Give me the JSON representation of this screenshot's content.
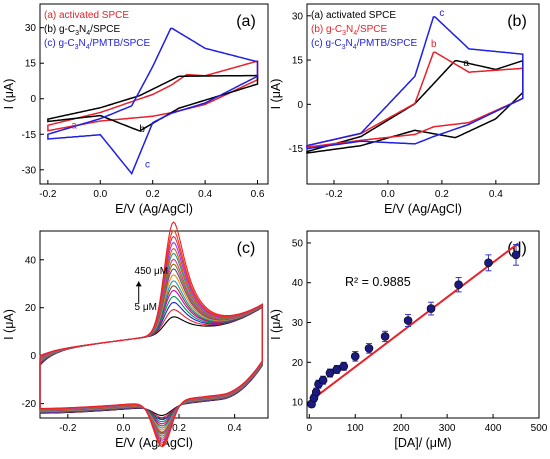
{
  "chart_data": [
    {
      "panel": "(a)",
      "type": "line",
      "xlabel": "E/V (Ag/AgCl)",
      "ylabel": "I (μA)",
      "xlim": [
        -0.23,
        0.64
      ],
      "ylim": [
        -36,
        40
      ],
      "xticks": [
        "-0.2",
        "0.0",
        "0.2",
        "0.4",
        "0.6"
      ],
      "yticks": [
        "-30",
        "-15",
        "0",
        "15",
        "30"
      ],
      "legend_position": "top-left",
      "series": [
        {
          "name": "(a) activated SPCE",
          "legend_html": "(a) activated SPCE",
          "color": "#e8212b",
          "curve_label": "a",
          "x_start": -0.2,
          "x_end": 0.6,
          "base_upper": 1.5,
          "base_lower": -9,
          "peaks": [
            {
              "branch": "upper",
              "E": 0.33,
              "height": 13.5,
              "width": 0.07
            },
            {
              "branch": "lower",
              "E": 0.15,
              "height": -9,
              "width": 0.07
            }
          ],
          "scan_x": [
            -0.2,
            0.0,
            0.2,
            0.27,
            0.33,
            0.4,
            0.6
          ],
          "fwd_y": [
            -11.2,
            -5.8,
            1.8,
            5.7,
            10.2,
            9.7,
            15.9
          ],
          "rev_y": [
            -13.5,
            -9.4,
            -7.4,
            -5.9,
            -4.3,
            -2.4,
            8.0
          ]
        },
        {
          "name": "(b) g-C3N4/SPCE",
          "legend_html": "(b) g-C<tspan font-size='7' dy='3'>3</tspan><tspan dy='-3'>N</tspan><tspan font-size='7' dy='3'>4</tspan><tspan dy='-3'>/SPCE</tspan>",
          "color": "#000000",
          "curve_label": "b",
          "x_start": -0.2,
          "x_end": 0.6,
          "base_upper": 1.2,
          "base_lower": -9.5,
          "peaks": [
            {
              "branch": "upper",
              "E": 0.3,
              "height": 9,
              "width": 0.09
            },
            {
              "branch": "lower",
              "E": 0.13,
              "height": -8,
              "width": 0.08
            }
          ],
          "scan_x": [
            -0.2,
            0.0,
            0.15,
            0.3,
            0.6
          ],
          "fwd_y": [
            -8.6,
            -3.8,
            1.3,
            9.5,
            9.8
          ],
          "rev_y": [
            -9.6,
            -7.1,
            -13.6,
            -4.0,
            6.2
          ]
        },
        {
          "name": "(c) g-C3N4/PMTB/SPCE",
          "legend_html": "(c) g-C<tspan font-size='7' dy='3'>3</tspan><tspan dy='-3'>N</tspan><tspan font-size='7' dy='3'>4</tspan><tspan dy='-3'>/PMTB/SPCE</tspan>",
          "color": "#1f1fe6",
          "curve_label": "c",
          "x_start": -0.2,
          "x_end": 0.6,
          "base_upper": 1.0,
          "base_lower": -7,
          "peaks": [
            {
              "branch": "upper",
              "E": 0.27,
              "height": 24,
              "width": 0.07
            },
            {
              "branch": "lower",
              "E": 0.12,
              "height": -26,
              "width": 0.065
            }
          ],
          "scan_x": [
            -0.2,
            0.0,
            0.12,
            0.2,
            0.27,
            0.4,
            0.6
          ],
          "fwd_y": [
            -15.0,
            -8.4,
            -3.0,
            13.6,
            30.0,
            21.3,
            15.6
          ],
          "rev_y": [
            -17.0,
            -15.2,
            -31.6,
            -10.1,
            -6.2,
            -1.8,
            9.5
          ]
        }
      ],
      "curve_label_positions": [
        {
          "label": "a",
          "x": -0.1,
          "y": -12.5
        },
        {
          "label": "b",
          "x": 0.16,
          "y": -14
        },
        {
          "label": "c",
          "x": 0.18,
          "y": -29
        }
      ],
      "annotations": []
    },
    {
      "panel": "(b)",
      "type": "line",
      "xlabel": "E/V (Ag/AgCl)",
      "ylabel": "I (μA)",
      "xlim": [
        -0.3,
        0.56
      ],
      "ylim": [
        -27,
        34
      ],
      "xticks": [
        "-0.2",
        "0.0",
        "0.2",
        "0.4"
      ],
      "yticks": [
        "-15",
        "0",
        "15",
        "30"
      ],
      "legend_position": "top-left",
      "series": [
        {
          "name": "(a) activated SPCE",
          "legend_html": "(a) activated SPCE",
          "color": "#000000",
          "curve_label": "a",
          "x_start": -0.3,
          "x_end": 0.5,
          "base_upper": 1.0,
          "base_lower": -6,
          "peaks": [
            {
              "branch": "upper",
              "E": 0.25,
              "height": 5,
              "width": 0.06
            },
            {
              "branch": "lower",
              "E": 0.17,
              "height": -3,
              "width": 0.07
            }
          ],
          "scan_x": [
            -0.3,
            -0.1,
            0.1,
            0.25,
            0.4,
            0.5
          ],
          "fwd_y": [
            -16.0,
            -10.9,
            0.2,
            14.9,
            11.8,
            14.8
          ],
          "rev_y": [
            -16.5,
            -14.0,
            -8.8,
            -11.3,
            -4.9,
            4.0
          ]
        },
        {
          "name": "(b) g-C3N4/SPCE",
          "legend_html": "(b) g-C<tspan font-size='7' dy='3'>3</tspan><tspan dy='-3'>N</tspan><tspan font-size='7' dy='3'>4</tspan><tspan dy='-3'>/SPCE</tspan>",
          "color": "#e8212b",
          "curve_label": "b",
          "x_start": -0.3,
          "x_end": 0.5,
          "base_upper": 0.0,
          "base_lower": -6,
          "peaks": [
            {
              "branch": "upper",
              "E": 0.17,
              "height": 9,
              "width": 0.05
            },
            {
              "branch": "lower",
              "E": 0.1,
              "height": -2,
              "width": 0.05
            }
          ],
          "scan_x": [
            -0.3,
            -0.1,
            0.1,
            0.17,
            0.3,
            0.5
          ],
          "fwd_y": [
            -14.0,
            -9.9,
            0.3,
            17.9,
            10.9,
            12.2
          ],
          "rev_y": [
            -14.5,
            -12.2,
            -10.2,
            -7.6,
            -6.2,
            2.0
          ]
        },
        {
          "name": "(c) g-C3N4/PMTB/SPCE",
          "legend_html": "(c) g-C<tspan font-size='7' dy='3'>3</tspan><tspan dy='-3'>N</tspan><tspan font-size='7' dy='3'>4</tspan><tspan dy='-3'>/PMTB/SPCE</tspan>",
          "color": "#1f1fe6",
          "curve_label": "c",
          "x_start": -0.3,
          "x_end": 0.5,
          "base_upper": 3.5,
          "base_lower": -6,
          "peaks": [
            {
              "branch": "upper",
              "E": 0.17,
              "height": 13,
              "width": 0.045
            },
            {
              "branch": "lower",
              "E": 0.12,
              "height": -5,
              "width": 0.05
            }
          ],
          "scan_x": [
            -0.3,
            -0.1,
            0.1,
            0.17,
            0.3,
            0.5
          ],
          "fwd_y": [
            -14.0,
            -9.8,
            9.5,
            30.0,
            18.8,
            17.0
          ],
          "rev_y": [
            -15.0,
            -12.5,
            -13.4,
            -10.9,
            -6.8,
            2.0
          ]
        }
      ],
      "curve_label_positions": [
        {
          "label": "a",
          "x": 0.29,
          "y": 13
        },
        {
          "label": "b",
          "x": 0.17,
          "y": 19.5
        },
        {
          "label": "c",
          "x": 0.2,
          "y": 30
        }
      ],
      "annotations": []
    },
    {
      "panel": "(c)",
      "type": "line",
      "xlabel": "E/V (Ag/AgCl)",
      "ylabel": "I (μA)",
      "xlim": [
        -0.3,
        0.52
      ],
      "ylim": [
        -26,
        52
      ],
      "xticks": [
        "-0.2",
        "0.0",
        "0.2",
        "0.4"
      ],
      "yticks": [
        "-20",
        "0",
        "20",
        "40"
      ],
      "legend_position": "none",
      "series": [
        {
          "name": "",
          "color": "#000000",
          "peak_upper": 7,
          "peak_lower": -4
        },
        {
          "name": "",
          "color": "#e8212b",
          "peak_upper": 10,
          "peak_lower": -5
        },
        {
          "name": "",
          "color": "#1f1fe6",
          "peak_upper": 13,
          "peak_lower": -6
        },
        {
          "name": "",
          "color": "#009e3d",
          "peak_upper": 15.5,
          "peak_lower": -7
        },
        {
          "name": "",
          "color": "#cc00cc",
          "peak_upper": 18,
          "peak_lower": -8
        },
        {
          "name": "",
          "color": "#8b4513",
          "peak_upper": 20,
          "peak_lower": -9
        },
        {
          "name": "",
          "color": "#00aacc",
          "peak_upper": 22,
          "peak_lower": -10
        },
        {
          "name": "",
          "color": "#ff8800",
          "peak_upper": 24.5,
          "peak_lower": -11
        },
        {
          "name": "",
          "color": "#6a3d9a",
          "peak_upper": 27,
          "peak_lower": -12
        },
        {
          "name": "",
          "color": "#808000",
          "peak_upper": 29,
          "peak_lower": -12.5
        },
        {
          "name": "",
          "color": "#e7298a",
          "peak_upper": 31,
          "peak_lower": -13
        },
        {
          "name": "",
          "color": "#1b9e77",
          "peak_upper": 33.5,
          "peak_lower": -14
        },
        {
          "name": "",
          "color": "#d95f02",
          "peak_upper": 35.5,
          "peak_lower": -15
        },
        {
          "name": "",
          "color": "#9933ff",
          "peak_upper": 38,
          "peak_lower": -16
        },
        {
          "name": "",
          "color": "#cc3366",
          "peak_upper": 40.5,
          "peak_lower": -17
        },
        {
          "name": "",
          "color": "#ff3300",
          "peak_upper": 43,
          "peak_lower": -18
        },
        {
          "name": "",
          "color": "#e8212b",
          "peak_upper": 46.5,
          "peak_lower": -19
        }
      ],
      "curve_params": {
        "x_start": -0.3,
        "x_end": 0.5,
        "peak_upper_E": 0.18,
        "peak_lower_E": 0.14,
        "width": 0.045
      },
      "annotations": [
        {
          "text": "450 μM",
          "x": 0.04,
          "y": 34
        },
        {
          "text": "5 μM",
          "x": 0.04,
          "y": 19
        }
      ],
      "arrow": {
        "x": 0.055,
        "y_from": 22,
        "y_to": 31
      }
    },
    {
      "panel": "(d)",
      "type": "scatter",
      "xlabel": "[DA]/ (μM)",
      "ylabel": "I (μA)",
      "xlim": [
        -5,
        500
      ],
      "ylim": [
        6,
        53
      ],
      "xticks": [
        "0",
        "100",
        "200",
        "300",
        "400",
        "500"
      ],
      "yticks": [
        "10",
        "20",
        "30",
        "40",
        "50"
      ],
      "annotation": "R² = 0.9885",
      "x": [
        5,
        10,
        15,
        20,
        30,
        45,
        60,
        75,
        100,
        130,
        165,
        215,
        265,
        325,
        390,
        450
      ],
      "y": [
        9.5,
        11,
        12.5,
        14.5,
        15.5,
        17.3,
        18.2,
        19,
        21.5,
        23.5,
        26.5,
        30.5,
        33.5,
        39.5,
        45,
        47
      ],
      "error": [
        0.8,
        0.9,
        1.0,
        1.0,
        1.0,
        1.0,
        1.0,
        1.0,
        1.2,
        1.2,
        1.3,
        1.5,
        1.6,
        1.8,
        2.0,
        2.6
      ],
      "fit": {
        "slope": 0.0875,
        "intercept": 10.1,
        "color": "#e8212b"
      },
      "marker_color": "#1a1a80"
    }
  ]
}
